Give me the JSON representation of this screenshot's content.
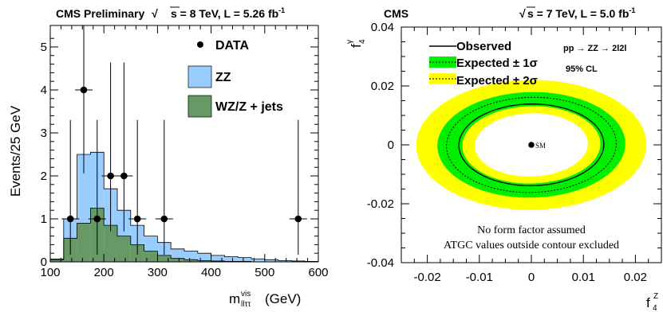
{
  "chart_data": [
    {
      "type": "bar",
      "title": "CMS Preliminary",
      "title_energy": "s = 8 TeV, L = 5.26 fb",
      "title_lumi_exp": "-1",
      "xlabel_main": "m",
      "xlabel_sub": "llττ",
      "xlabel_sup": "vis",
      "xlabel_unit": "(GeV)",
      "ylabel": "Events/25 GeV",
      "xlim": [
        100,
        600
      ],
      "ylim": [
        0,
        5.5
      ],
      "x_ticks": [
        "100",
        "200",
        "300",
        "400",
        "500",
        "600"
      ],
      "y_ticks": [
        "0",
        "1",
        "2",
        "3",
        "4",
        "5"
      ],
      "legend_position": "top-right",
      "bin_edges": [
        100,
        125,
        150,
        175,
        200,
        225,
        250,
        275,
        300,
        325,
        350,
        375,
        400,
        425,
        450,
        475,
        500,
        525,
        550,
        575,
        600
      ],
      "series": [
        {
          "name": "ZZ",
          "color": "#99ccff",
          "values": [
            0.07,
            1.0,
            2.5,
            2.55,
            1.7,
            1.2,
            0.85,
            0.6,
            0.45,
            0.3,
            0.25,
            0.2,
            0.15,
            0.12,
            0.1,
            0.07,
            0.05,
            0.03,
            0.02,
            0.01
          ]
        },
        {
          "name": "WZ/Z + jets",
          "color": "#669966",
          "values": [
            0.05,
            0.55,
            0.9,
            1.25,
            0.85,
            0.6,
            0.4,
            0.25,
            0.15,
            0.08,
            0.05,
            0.03,
            0.02,
            0.01,
            0.01,
            0,
            0,
            0,
            0,
            0
          ]
        }
      ],
      "data_points": {
        "name": "DATA",
        "x": [
          137.5,
          162.5,
          187.5,
          212.5,
          237.5,
          262.5,
          312.5,
          562.5
        ],
        "y": [
          1,
          4,
          1,
          2,
          2,
          1,
          1,
          1
        ],
        "err_low": [
          0.83,
          1.94,
          0.83,
          1.29,
          1.29,
          0.83,
          0.83,
          0.83
        ],
        "err_high": [
          2.3,
          3.16,
          2.3,
          2.64,
          2.64,
          2.3,
          2.3,
          2.3
        ]
      }
    },
    {
      "type": "contour",
      "title_left": "CMS",
      "title_right": "s = 7 TeV, L = 5.0 fb",
      "title_lumi_exp": "-1",
      "xlabel_main": "f",
      "xlabel_sub": "4",
      "xlabel_sup": "Z",
      "ylabel_main": "f",
      "ylabel_sub": "4",
      "ylabel_sup": "γ",
      "xlim": [
        -0.025,
        0.025
      ],
      "ylim": [
        -0.04,
        0.04
      ],
      "x_ticks": [
        "-0.02",
        "-0.01",
        "0",
        "0.01",
        "0.02"
      ],
      "y_ticks": [
        "0.04",
        "0.02",
        "0",
        "-0.02",
        "-0.04"
      ],
      "legend_position": "top-left",
      "process": "pp → ZZ → 2l2l",
      "cl_label": "95% CL",
      "sm_label": "SM",
      "sm_point": [
        0,
        0
      ],
      "legend": [
        {
          "label": "Observed",
          "style": "solid",
          "color": "#000000"
        },
        {
          "label": "Expected ± 1σ",
          "style": "dotted",
          "color": "#00ee00"
        },
        {
          "label": "Expected ± 2σ",
          "style": "dotted",
          "color": "#ffff00"
        }
      ],
      "contour_angle_deg": -35,
      "contours": {
        "band_2sigma_outer": {
          "a": 0.0222,
          "b": 0.022
        },
        "band_1sigma_outer": {
          "a": 0.0182,
          "b": 0.0178
        },
        "expected": {
          "a": 0.0165,
          "b": 0.016
        },
        "observed": {
          "a": 0.014,
          "b": 0.0138
        },
        "band_1sigma_inner": {
          "a": 0.0134,
          "b": 0.013
        },
        "band_2sigma_inner": {
          "a": 0.011,
          "b": 0.0106
        }
      },
      "annotation_1": "No form factor assumed",
      "annotation_2": "ATGC values outside contour excluded"
    }
  ]
}
